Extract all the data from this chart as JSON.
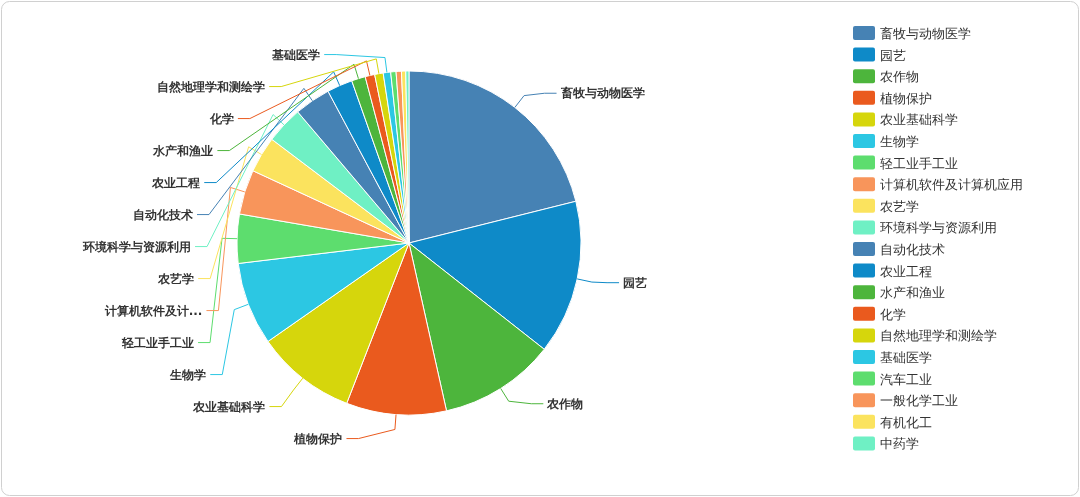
{
  "chart_data": {
    "type": "pie",
    "categories": [
      "畜牧与动物医学",
      "园艺",
      "农作物",
      "植物保护",
      "农业基础科学",
      "生物学",
      "轻工业手工业",
      "计算机软件及计算机应用",
      "农艺学",
      "环境科学与资源利用",
      "自动化技术",
      "农业工程",
      "水产和渔业",
      "化学",
      "自然地理学和测绘学",
      "基础医学",
      "汽车工业",
      "一般化学工业",
      "有机化工",
      "中药学"
    ],
    "values": [
      21.1,
      14.5,
      10.9,
      9.4,
      9.4,
      7.8,
      4.6,
      4.2,
      3.4,
      3.5,
      3.4,
      2.4,
      1.3,
      0.9,
      0.8,
      0.7,
      0.5,
      0.5,
      0.4,
      0.3
    ],
    "colors": [
      "#4682b4",
      "#0e8ac8",
      "#4db53c",
      "#ea5a1e",
      "#d6d60c",
      "#2cc7e3",
      "#5ddd6e",
      "#f8955b",
      "#fbe35e",
      "#6ff0c4",
      "#4682b4",
      "#0e8ac8",
      "#4db53c",
      "#ea5a1e",
      "#d6d60c",
      "#2cc7e3",
      "#5ddd6e",
      "#f8955b",
      "#fbe35e",
      "#6ff0c4"
    ],
    "annotations": [
      "畜牧与动物医学",
      "园艺",
      "农作物",
      "植物保护",
      "农业基础科学",
      "生物学",
      "轻工业手工业",
      "计算机软件及计...",
      "农艺学",
      "环境科学与资源利用",
      "自动化技术",
      "农业工程",
      "水产和渔业",
      "化学",
      "自然地理学和测绘学",
      "基础医学"
    ],
    "legend": "right"
  }
}
